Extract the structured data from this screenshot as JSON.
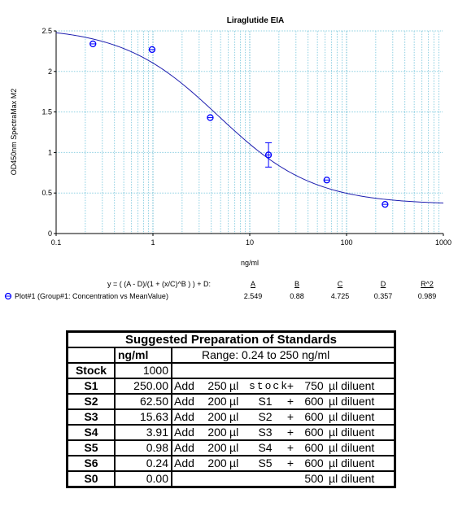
{
  "chart_data": {
    "type": "scatter",
    "title": "Liraglutide EIA",
    "xlabel": "ng/ml",
    "ylabel": "OD450nm SpectraMax M2",
    "xscale": "log",
    "xlim": [
      0.1,
      1000
    ],
    "ylim": [
      0,
      2.5
    ],
    "x_ticks": [
      "0.1",
      "1",
      "10",
      "100",
      "1000"
    ],
    "y_ticks": [
      "0",
      "0.5",
      "1",
      "1.5",
      "2",
      "2.5"
    ],
    "grid": "on",
    "series": [
      {
        "name": "Plot#1 (Group#1: Concentration vs MeanValue)",
        "x": [
          0.24,
          0.98,
          3.91,
          15.63,
          62.5,
          250
        ],
        "y": [
          2.34,
          2.27,
          1.43,
          0.97,
          0.66,
          0.36
        ],
        "y_error": [
          0,
          0,
          0,
          0.15,
          0,
          0
        ],
        "color": "#0000ff"
      }
    ],
    "fit": {
      "equation": "y = ( (A - D)/(1 + (x/C)^B ) ) + D:",
      "param_labels": [
        "A",
        "B",
        "C",
        "D",
        "R^2"
      ],
      "param_values": [
        "2.549",
        "0.88",
        "4.725",
        "0.357",
        "0.989"
      ],
      "A": 2.549,
      "B": 0.88,
      "C": 4.725,
      "D": 0.357,
      "color": "#1f1fb0"
    }
  },
  "standards_table": {
    "title": "Suggested Preparation of Standards",
    "unit_header": "ng/ml",
    "range_text": "Range:  0.24  to  250 ng/ml",
    "stock_row": {
      "label": "Stock",
      "value": "1000"
    },
    "rows": [
      {
        "label": "S1",
        "value": "250.00",
        "add": "Add",
        "vol": "250",
        "unit": "µl",
        "source": "stock",
        "plus": "+",
        "diluent_vol": "750",
        "diluent": "µl diluent"
      },
      {
        "label": "S2",
        "value": "62.50",
        "add": "Add",
        "vol": "200",
        "unit": "µl",
        "source": "S1",
        "plus": "+",
        "diluent_vol": "600",
        "diluent": "µl diluent"
      },
      {
        "label": "S3",
        "value": "15.63",
        "add": "Add",
        "vol": "200",
        "unit": "µl",
        "source": "S2",
        "plus": "+",
        "diluent_vol": "600",
        "diluent": "µl diluent"
      },
      {
        "label": "S4",
        "value": "3.91",
        "add": "Add",
        "vol": "200",
        "unit": "µl",
        "source": "S3",
        "plus": "+",
        "diluent_vol": "600",
        "diluent": "µl diluent"
      },
      {
        "label": "S5",
        "value": "0.98",
        "add": "Add",
        "vol": "200",
        "unit": "µl",
        "source": "S4",
        "plus": "+",
        "diluent_vol": "600",
        "diluent": "µl diluent"
      },
      {
        "label": "S6",
        "value": "0.24",
        "add": "Add",
        "vol": "200",
        "unit": "µl",
        "source": "S5",
        "plus": "+",
        "diluent_vol": "600",
        "diluent": "µl diluent"
      }
    ],
    "blank_row": {
      "label": "S0",
      "value": "0.00",
      "diluent_vol": "500",
      "diluent": "µl diluent"
    }
  }
}
